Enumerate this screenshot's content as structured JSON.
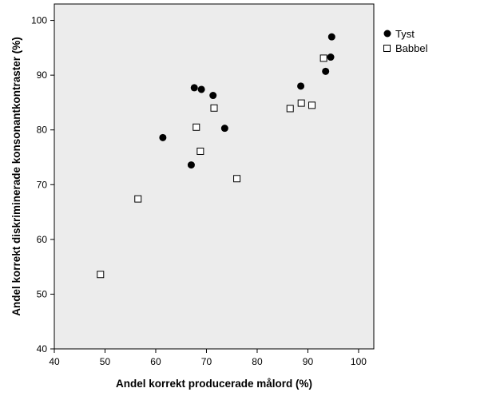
{
  "chart_data": {
    "type": "scatter",
    "title": "",
    "xlabel": "Andel korrekt producerade målord (%)",
    "ylabel": "Andel korrekt diskriminerade konsonantkontraster (%)",
    "xlim": [
      40,
      103
    ],
    "ylim": [
      40,
      103
    ],
    "x_ticks": [
      40,
      50,
      60,
      70,
      80,
      90,
      100
    ],
    "y_ticks": [
      40,
      50,
      60,
      70,
      80,
      90,
      100
    ],
    "grid": false,
    "legend_position": "outside-right-top",
    "plot_background": "#ececec",
    "series": [
      {
        "name": "Tyst",
        "marker": "filled-circle",
        "color": "#000000",
        "points": [
          [
            94.7,
            97.0
          ],
          [
            94.5,
            93.3
          ],
          [
            93.5,
            90.7
          ],
          [
            88.6,
            88.0
          ],
          [
            67.6,
            87.7
          ],
          [
            69.0,
            87.4
          ],
          [
            71.3,
            86.3
          ],
          [
            73.6,
            80.3
          ],
          [
            61.4,
            78.6
          ],
          [
            67.0,
            73.6
          ]
        ]
      },
      {
        "name": "Babbel",
        "marker": "open-square",
        "color": "#000000",
        "points": [
          [
            93.1,
            93.1
          ],
          [
            88.7,
            84.9
          ],
          [
            90.8,
            84.5
          ],
          [
            86.5,
            83.9
          ],
          [
            71.5,
            84.0
          ],
          [
            68.0,
            80.5
          ],
          [
            68.8,
            76.1
          ],
          [
            76.0,
            71.1
          ],
          [
            56.5,
            67.4
          ],
          [
            49.1,
            53.6
          ]
        ]
      }
    ]
  }
}
